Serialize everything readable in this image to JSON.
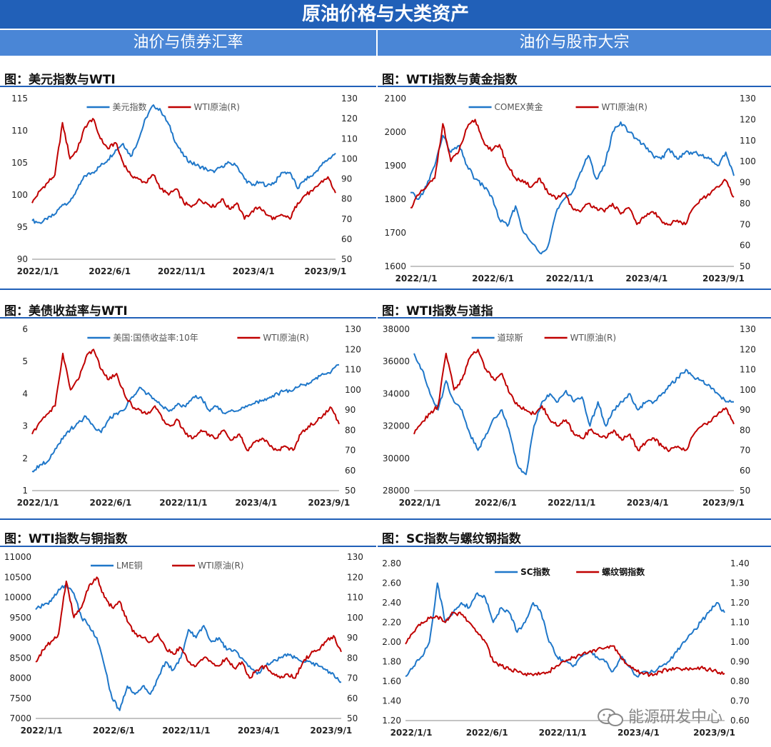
{
  "header": {
    "title": "原油价格与大类资产",
    "left_section": "油价与债券汇率",
    "right_section": "油价与股市大宗"
  },
  "watermark": "能源研发中心",
  "colors": {
    "blue": "#1f77c9",
    "red": "#c00000",
    "header": "#2160b8",
    "subheader": "#4a86d6"
  },
  "charts": [
    {
      "type": "line",
      "title": "图：美元指数与WTI",
      "x_ticks": [
        "2022/1/1",
        "2022/6/1",
        "2022/11/1",
        "2023/4/1",
        "2023/9/1"
      ],
      "ylim": [
        90,
        115
      ],
      "y_ticks": [
        90,
        95,
        100,
        105,
        110,
        115
      ],
      "y2lim": [
        50,
        130
      ],
      "y2_ticks": [
        50,
        60,
        70,
        80,
        90,
        100,
        110,
        120,
        130
      ],
      "series": [
        {
          "name": "美元指数",
          "color": "#1f77c9",
          "axis": "left",
          "values": [
            96,
            95.7,
            96.2,
            97,
            98.5,
            99,
            101,
            103,
            103.5,
            104.5,
            105.5,
            107,
            108,
            106,
            108.5,
            112,
            114,
            113,
            111,
            108,
            106,
            105,
            104.5,
            104,
            103.5,
            104.5,
            105,
            104.5,
            102.5,
            101.5,
            102,
            101.5,
            102,
            103.5,
            103.5,
            101,
            102.5,
            103,
            104.5,
            105.5,
            106.5
          ]
        },
        {
          "name": "WTI原油(R)",
          "color": "#c00000",
          "axis": "right",
          "values": [
            78,
            84,
            88,
            92,
            118,
            100,
            105,
            116,
            120,
            110,
            105,
            108,
            98,
            92,
            90,
            88,
            92,
            85,
            82,
            85,
            78,
            76,
            80,
            78,
            76,
            80,
            75,
            78,
            70,
            74,
            76,
            72,
            70,
            72,
            70,
            78,
            82,
            84,
            88,
            91,
            83
          ]
        }
      ]
    },
    {
      "type": "line",
      "title": "图：WTI指数与黄金指数",
      "x_ticks": [
        "2022/1/1",
        "2022/6/1",
        "2022/11/1",
        "2023/4/1",
        "2023/9/1"
      ],
      "ylim": [
        1600,
        2100
      ],
      "y_ticks": [
        1600,
        1700,
        1800,
        1900,
        2000,
        2100
      ],
      "y2lim": [
        50,
        130
      ],
      "y2_ticks": [
        50,
        60,
        70,
        80,
        90,
        100,
        110,
        120,
        130
      ],
      "series": [
        {
          "name": "COMEX黄金",
          "color": "#1f77c9",
          "axis": "left",
          "values": [
            1820,
            1800,
            1840,
            1900,
            1990,
            1940,
            1960,
            1900,
            1860,
            1840,
            1810,
            1740,
            1720,
            1780,
            1700,
            1670,
            1640,
            1660,
            1760,
            1800,
            1820,
            1880,
            1930,
            1860,
            1900,
            2000,
            2030,
            2000,
            1980,
            1960,
            1930,
            1920,
            1950,
            1920,
            1940,
            1940,
            1930,
            1920,
            1900,
            1940,
            1870
          ]
        },
        {
          "name": "WTI原油(R)",
          "color": "#c00000",
          "axis": "right",
          "values": [
            78,
            84,
            88,
            92,
            118,
            100,
            105,
            116,
            120,
            110,
            105,
            108,
            98,
            92,
            90,
            88,
            92,
            85,
            82,
            85,
            78,
            76,
            80,
            78,
            76,
            80,
            75,
            78,
            70,
            74,
            76,
            72,
            70,
            72,
            70,
            78,
            82,
            84,
            88,
            91,
            83
          ]
        }
      ]
    },
    {
      "type": "line",
      "title": "图：美债收益率与WTI",
      "x_ticks": [
        "2022/1/1",
        "2022/6/1",
        "2022/11/1",
        "2023/4/1",
        "2023/9/1"
      ],
      "ylim": [
        1,
        6
      ],
      "y_ticks": [
        1,
        2,
        3,
        4,
        5,
        6
      ],
      "y2lim": [
        50,
        130
      ],
      "y2_ticks": [
        50,
        60,
        70,
        80,
        90,
        100,
        110,
        120,
        130
      ],
      "series": [
        {
          "name": "美国:国债收益率:10年",
          "color": "#1f77c9",
          "axis": "left",
          "values": [
            1.6,
            1.8,
            1.9,
            2.3,
            2.6,
            2.9,
            3.1,
            3.3,
            3.0,
            2.8,
            3.2,
            3.4,
            3.5,
            3.9,
            4.2,
            4.0,
            3.8,
            3.6,
            3.5,
            3.7,
            3.6,
            3.9,
            3.9,
            3.5,
            3.6,
            3.4,
            3.5,
            3.5,
            3.6,
            3.7,
            3.8,
            3.9,
            4.0,
            4.1,
            4.1,
            4.3,
            4.3,
            4.5,
            4.6,
            4.7,
            4.9
          ]
        },
        {
          "name": "WTI原油(R)",
          "color": "#c00000",
          "axis": "right",
          "values": [
            78,
            84,
            88,
            92,
            118,
            100,
            105,
            116,
            120,
            110,
            105,
            108,
            98,
            92,
            90,
            88,
            92,
            85,
            82,
            85,
            78,
            76,
            80,
            78,
            76,
            80,
            75,
            78,
            70,
            74,
            76,
            72,
            70,
            72,
            70,
            78,
            82,
            84,
            88,
            91,
            83
          ]
        }
      ]
    },
    {
      "type": "line",
      "title": "图：WTI指数与道指",
      "x_ticks": [
        "2022/1/1",
        "2022/6/1",
        "2022/11/1",
        "2023/4/1",
        "2023/9/1"
      ],
      "ylim": [
        28000,
        38000
      ],
      "y_ticks": [
        28000,
        30000,
        32000,
        34000,
        36000,
        38000
      ],
      "y2lim": [
        50,
        130
      ],
      "y2_ticks": [
        50,
        60,
        70,
        80,
        90,
        100,
        110,
        120,
        130
      ],
      "series": [
        {
          "name": "道琼斯",
          "color": "#1f77c9",
          "axis": "left",
          "values": [
            36500,
            35500,
            34000,
            33000,
            34800,
            33500,
            33000,
            31500,
            30500,
            31500,
            32500,
            33000,
            31500,
            29500,
            29000,
            32000,
            33500,
            34000,
            33500,
            34200,
            33500,
            33800,
            32000,
            33500,
            32000,
            33000,
            33500,
            34000,
            33000,
            33500,
            33500,
            34000,
            34500,
            35000,
            35500,
            35000,
            34800,
            34500,
            34000,
            33500,
            33500
          ]
        },
        {
          "name": "WTI原油(R)",
          "color": "#c00000",
          "axis": "right",
          "values": [
            78,
            84,
            88,
            92,
            118,
            100,
            105,
            116,
            120,
            110,
            105,
            108,
            98,
            92,
            90,
            88,
            92,
            85,
            82,
            85,
            78,
            76,
            80,
            78,
            76,
            80,
            75,
            78,
            70,
            74,
            76,
            72,
            70,
            72,
            70,
            78,
            82,
            84,
            88,
            91,
            83
          ]
        }
      ]
    },
    {
      "type": "line",
      "title": "图：WTI指数与铜指数",
      "x_ticks": [
        "2022/1/1",
        "2022/6/1",
        "2022/11/1",
        "2023/4/1",
        "2023/9/1"
      ],
      "ylim": [
        7000,
        11000
      ],
      "y_ticks": [
        7000,
        7500,
        8000,
        8500,
        9000,
        9500,
        10000,
        10500,
        11000
      ],
      "y2lim": [
        50,
        130
      ],
      "y2_ticks": [
        50,
        60,
        70,
        80,
        90,
        100,
        110,
        120,
        130
      ],
      "series": [
        {
          "name": "LME铜",
          "color": "#1f77c9",
          "axis": "left",
          "values": [
            9700,
            9800,
            9900,
            10200,
            10300,
            10100,
            9500,
            9300,
            9000,
            8300,
            7500,
            7200,
            7800,
            7600,
            7800,
            7600,
            8000,
            8400,
            8200,
            8500,
            9200,
            9000,
            9300,
            8900,
            9000,
            8700,
            8700,
            8500,
            8300,
            8100,
            8300,
            8400,
            8500,
            8600,
            8500,
            8400,
            8400,
            8300,
            8200,
            8100,
            7900
          ]
        },
        {
          "name": "WTI原油(R)",
          "color": "#c00000",
          "axis": "right",
          "values": [
            78,
            84,
            88,
            92,
            118,
            100,
            105,
            116,
            120,
            110,
            105,
            108,
            98,
            92,
            90,
            88,
            92,
            85,
            82,
            85,
            78,
            76,
            80,
            78,
            76,
            80,
            75,
            78,
            70,
            74,
            76,
            72,
            70,
            72,
            70,
            78,
            82,
            84,
            88,
            91,
            83
          ]
        }
      ]
    },
    {
      "type": "line",
      "title": "图：SC指数与螺纹钢指数",
      "x_ticks": [
        "2022/1/1",
        "2022/6/1",
        "2022/11/1",
        "2023/4/1",
        "2023/9/1"
      ],
      "ylim": [
        1.2,
        2.8
      ],
      "y_ticks": [
        "1.20",
        "1.40",
        "1.60",
        "1.80",
        "2.00",
        "2.20",
        "2.40",
        "2.60",
        "2.80"
      ],
      "y2lim": [
        0.6,
        1.4
      ],
      "y2_ticks": [
        "0.60",
        "0.70",
        "0.80",
        "0.90",
        "1.00",
        "1.10",
        "1.20",
        "1.30",
        "1.40"
      ],
      "series": [
        {
          "name": "SC指数",
          "color": "#1f77c9",
          "axis": "left",
          "values": [
            1.65,
            1.75,
            1.85,
            2.0,
            2.6,
            2.2,
            2.3,
            2.4,
            2.35,
            2.5,
            2.45,
            2.2,
            2.35,
            2.3,
            2.1,
            2.2,
            2.4,
            2.3,
            2.0,
            1.85,
            1.8,
            1.75,
            1.85,
            1.9,
            1.85,
            1.8,
            1.7,
            1.85,
            1.75,
            1.65,
            1.7,
            1.7,
            1.75,
            1.8,
            1.9,
            2.0,
            2.1,
            2.2,
            2.3,
            2.4,
            2.3
          ]
        },
        {
          "name": "螺纹钢指数",
          "color": "#c00000",
          "axis": "right",
          "values": [
            0.99,
            1.05,
            1.1,
            1.12,
            1.13,
            1.1,
            1.15,
            1.14,
            1.1,
            1.05,
            1.0,
            0.9,
            0.88,
            0.86,
            0.85,
            0.84,
            0.83,
            0.84,
            0.85,
            0.88,
            0.9,
            0.92,
            0.93,
            0.95,
            0.96,
            0.97,
            0.98,
            0.92,
            0.88,
            0.85,
            0.84,
            0.83,
            0.85,
            0.86,
            0.87,
            0.86,
            0.86,
            0.87,
            0.86,
            0.85,
            0.84
          ]
        }
      ]
    }
  ]
}
